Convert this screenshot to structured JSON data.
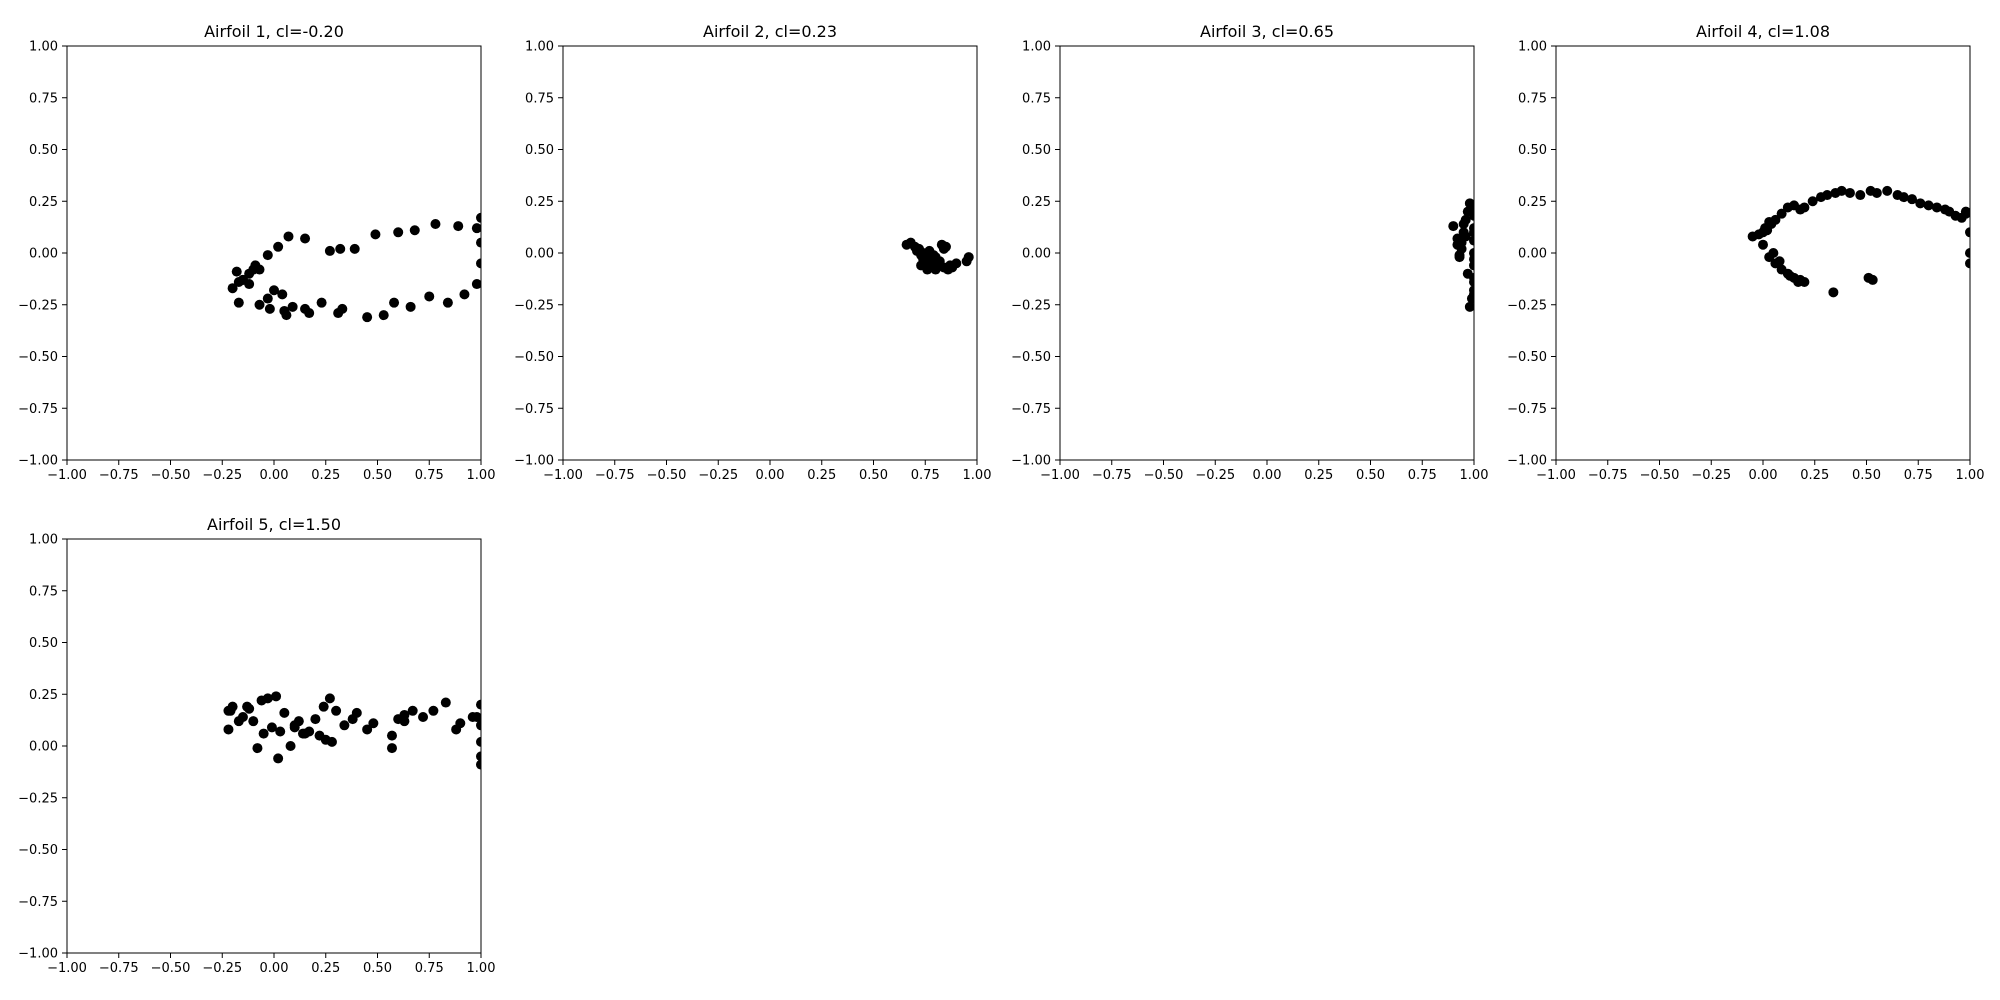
{
  "figure": {
    "background": "#ffffff",
    "marker_color": "#000000"
  },
  "chart_data": [
    {
      "type": "scatter",
      "title": "Airfoil 1, cl=-0.20",
      "xlim": [
        -1.0,
        1.0
      ],
      "ylim": [
        -1.0,
        1.0
      ],
      "xticks": [
        "−1.00",
        "−0.75",
        "−0.50",
        "−0.25",
        "0.00",
        "0.25",
        "0.50",
        "0.75",
        "1.00"
      ],
      "yticks": [
        "−1.00",
        "−0.75",
        "−0.50",
        "−0.25",
        "0.00",
        "0.25",
        "0.50",
        "0.75",
        "1.00"
      ],
      "grid": false,
      "x": [
        -0.2,
        -0.18,
        -0.17,
        -0.15,
        -0.12,
        -0.09,
        -0.07,
        -0.03,
        0.02,
        0.07,
        0.15,
        0.27,
        0.32,
        0.39,
        0.49,
        0.6,
        0.68,
        0.78,
        0.89,
        0.98,
        1.0,
        1.0,
        1.0,
        0.98,
        0.92,
        0.84,
        0.75,
        0.66,
        0.58,
        0.53,
        0.45,
        0.33,
        0.31,
        0.23,
        0.17,
        0.15,
        0.09,
        0.06,
        0.04,
        -0.02,
        -0.03,
        -0.07,
        -0.17,
        -0.15,
        -0.12,
        -0.1,
        0.05,
        0.0
      ],
      "y": [
        -0.17,
        -0.09,
        -0.14,
        -0.13,
        -0.1,
        -0.06,
        -0.08,
        -0.01,
        0.03,
        0.08,
        0.07,
        0.01,
        0.02,
        0.02,
        0.09,
        0.1,
        0.11,
        0.14,
        0.13,
        0.12,
        0.17,
        0.05,
        -0.05,
        -0.15,
        -0.2,
        -0.24,
        -0.21,
        -0.26,
        -0.24,
        -0.3,
        -0.31,
        -0.27,
        -0.29,
        -0.24,
        -0.29,
        -0.27,
        -0.26,
        -0.3,
        -0.2,
        -0.27,
        -0.22,
        -0.25,
        -0.24,
        -0.13,
        -0.15,
        -0.08,
        -0.28,
        -0.18
      ]
    },
    {
      "type": "scatter",
      "title": "Airfoil 2, cl=0.23",
      "xlim": [
        -1.0,
        1.0
      ],
      "ylim": [
        -1.0,
        1.0
      ],
      "xticks": [
        "−1.00",
        "−0.75",
        "−0.50",
        "−0.25",
        "0.00",
        "0.25",
        "0.50",
        "0.75",
        "1.00"
      ],
      "yticks": [
        "−1.00",
        "−0.75",
        "−0.50",
        "−0.25",
        "0.00",
        "0.25",
        "0.50",
        "0.75",
        "1.00"
      ],
      "grid": false,
      "x": [
        0.66,
        0.68,
        0.7,
        0.72,
        0.74,
        0.71,
        0.73,
        0.76,
        0.78,
        0.77,
        0.75,
        0.73,
        0.79,
        0.81,
        0.8,
        0.82,
        0.84,
        0.83,
        0.85,
        0.87,
        0.86,
        0.88,
        0.9,
        0.95,
        0.96,
        0.78,
        0.76,
        0.74,
        0.8,
        0.82,
        0.84,
        0.77,
        0.79,
        0.81,
        0.75
      ],
      "y": [
        0.04,
        0.05,
        0.03,
        0.02,
        0.0,
        0.01,
        -0.01,
        -0.02,
        -0.03,
        -0.05,
        -0.04,
        -0.06,
        -0.07,
        -0.06,
        -0.08,
        -0.05,
        -0.07,
        0.04,
        0.03,
        -0.06,
        -0.08,
        -0.07,
        -0.05,
        -0.04,
        -0.02,
        -0.07,
        -0.08,
        -0.03,
        -0.02,
        -0.04,
        0.02,
        0.01,
        -0.01,
        -0.06,
        -0.03
      ]
    },
    {
      "type": "scatter",
      "title": "Airfoil 3, cl=0.65",
      "xlim": [
        -1.0,
        1.0
      ],
      "ylim": [
        -1.0,
        1.0
      ],
      "xticks": [
        "−1.00",
        "−0.75",
        "−0.50",
        "−0.25",
        "0.00",
        "0.25",
        "0.50",
        "0.75",
        "1.00"
      ],
      "yticks": [
        "−1.00",
        "−0.75",
        "−0.50",
        "−0.25",
        "0.00",
        "0.25",
        "0.50",
        "0.75",
        "1.00"
      ],
      "grid": false,
      "x": [
        0.9,
        0.92,
        0.93,
        0.94,
        0.95,
        0.96,
        0.97,
        0.98,
        0.99,
        1.0,
        1.0,
        1.0,
        1.0,
        1.0,
        1.0,
        1.0,
        0.99,
        0.98,
        0.97,
        0.96,
        0.95,
        0.94,
        0.93,
        0.92,
        1.0,
        1.0,
        1.0,
        1.0
      ],
      "y": [
        0.13,
        0.04,
        -0.02,
        0.05,
        0.1,
        0.16,
        0.2,
        0.24,
        0.22,
        0.18,
        0.12,
        0.06,
        0.0,
        -0.06,
        -0.12,
        -0.18,
        -0.22,
        -0.26,
        -0.1,
        0.08,
        0.14,
        0.02,
        -0.01,
        0.07,
        0.1,
        -0.03,
        -0.14,
        -0.2
      ]
    },
    {
      "type": "scatter",
      "title": "Airfoil 4, cl=1.08",
      "xlim": [
        -1.0,
        1.0
      ],
      "ylim": [
        -1.0,
        1.0
      ],
      "xticks": [
        "−1.00",
        "−0.75",
        "−0.50",
        "−0.25",
        "0.00",
        "0.25",
        "0.50",
        "0.75",
        "1.00"
      ],
      "yticks": [
        "−1.00",
        "−0.75",
        "−0.50",
        "−0.25",
        "0.00",
        "0.25",
        "0.50",
        "0.75",
        "1.00"
      ],
      "grid": false,
      "x": [
        -0.05,
        -0.02,
        0.0,
        0.01,
        0.03,
        0.04,
        0.06,
        0.09,
        0.12,
        0.15,
        0.18,
        0.2,
        0.24,
        0.28,
        0.31,
        0.35,
        0.38,
        0.42,
        0.47,
        0.52,
        0.55,
        0.6,
        0.65,
        0.68,
        0.72,
        0.76,
        0.8,
        0.84,
        0.88,
        0.9,
        0.93,
        0.96,
        0.98,
        1.0,
        1.0,
        1.0,
        0.98,
        0.03,
        0.06,
        0.09,
        0.12,
        0.15,
        0.18,
        0.2,
        0.34,
        0.51,
        0.53,
        0.0,
        0.02,
        0.05,
        0.08,
        0.13,
        0.17
      ],
      "y": [
        0.08,
        0.09,
        0.1,
        0.12,
        0.15,
        0.14,
        0.16,
        0.19,
        0.22,
        0.23,
        0.21,
        0.22,
        0.25,
        0.27,
        0.28,
        0.29,
        0.3,
        0.29,
        0.28,
        0.3,
        0.29,
        0.3,
        0.28,
        0.27,
        0.26,
        0.24,
        0.23,
        0.22,
        0.21,
        0.2,
        0.18,
        0.17,
        0.2,
        0.1,
        0.0,
        -0.05,
        0.19,
        -0.02,
        -0.05,
        -0.08,
        -0.1,
        -0.12,
        -0.13,
        -0.14,
        -0.19,
        -0.12,
        -0.13,
        0.04,
        0.11,
        0.0,
        -0.04,
        -0.11,
        -0.14
      ]
    },
    {
      "type": "scatter",
      "title": "Airfoil 5, cl=1.50",
      "xlim": [
        -1.0,
        1.0
      ],
      "ylim": [
        -1.0,
        1.0
      ],
      "xticks": [
        "−1.00",
        "−0.75",
        "−0.50",
        "−0.25",
        "0.00",
        "0.25",
        "0.50",
        "0.75",
        "1.00"
      ],
      "yticks": [
        "−1.00",
        "−0.75",
        "−0.50",
        "−0.25",
        "0.00",
        "0.25",
        "0.50",
        "0.75",
        "1.00"
      ],
      "grid": false,
      "x": [
        -0.22,
        -0.21,
        -0.2,
        -0.15,
        -0.12,
        -0.1,
        -0.08,
        -0.05,
        -0.03,
        -0.01,
        0.01,
        0.03,
        0.05,
        0.08,
        0.1,
        0.12,
        0.14,
        0.17,
        0.2,
        0.22,
        0.25,
        0.27,
        0.3,
        0.34,
        0.38,
        0.4,
        0.45,
        0.48,
        0.57,
        0.6,
        0.63,
        0.67,
        0.72,
        0.77,
        0.83,
        0.88,
        0.9,
        0.96,
        0.98,
        1.0,
        1.0,
        1.0,
        1.0,
        1.0,
        -0.22,
        -0.17,
        -0.13,
        -0.06,
        0.02,
        0.1,
        0.15,
        0.24,
        0.28,
        0.57,
        0.63
      ],
      "y": [
        0.08,
        0.17,
        0.19,
        0.14,
        0.18,
        0.12,
        -0.01,
        0.06,
        0.23,
        0.09,
        0.24,
        0.07,
        0.16,
        0.0,
        0.09,
        0.12,
        0.06,
        0.07,
        0.13,
        0.05,
        0.03,
        0.23,
        0.17,
        0.1,
        0.13,
        0.16,
        0.08,
        0.11,
        0.05,
        0.13,
        0.12,
        0.17,
        0.14,
        0.17,
        0.21,
        0.08,
        0.11,
        0.14,
        0.14,
        0.2,
        0.1,
        0.02,
        -0.05,
        -0.09,
        0.17,
        0.12,
        0.19,
        0.22,
        -0.06,
        0.1,
        0.06,
        0.19,
        0.02,
        -0.01,
        0.15
      ]
    }
  ]
}
